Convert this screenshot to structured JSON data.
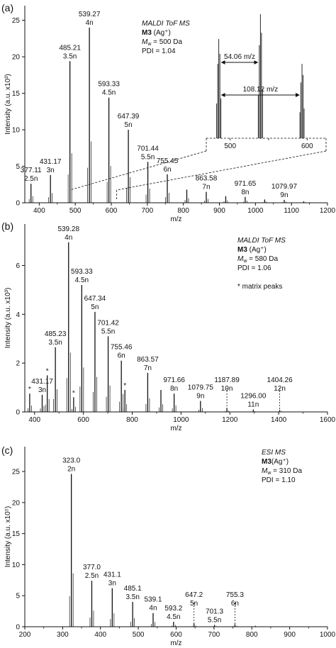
{
  "chart_data": [
    {
      "type": "bar",
      "panel_label": "(a)",
      "xlabel": "m/z",
      "ylabel": "Intensity (a.u. x10³)",
      "xlim": [
        360,
        1200
      ],
      "ylim": [
        0,
        27
      ],
      "x_ticks": [
        400,
        500,
        600,
        700,
        800,
        900,
        1000,
        1100,
        1200
      ],
      "y_ticks": [
        0,
        5,
        10,
        15,
        20,
        25
      ],
      "grid": false,
      "info": {
        "technique": "MALDI ToF MS",
        "sample": "M3",
        "ion": " (Ag⁺)",
        "mw": "M",
        "mw_sub": "w",
        "mw_value": " = 500 Da",
        "pdi": "PDI = 1.04"
      },
      "peaks": [
        {
          "x": 377.11,
          "y": 2.6,
          "label": "377.11",
          "sub": "2.5n"
        },
        {
          "x": 431.17,
          "y": 3.8,
          "label": "431.17",
          "sub": "3n"
        },
        {
          "x": 485.21,
          "y": 19.4,
          "label": "485.21",
          "sub": "3.5n"
        },
        {
          "x": 539.27,
          "y": 24.0,
          "label": "539.27",
          "sub": "4n"
        },
        {
          "x": 593.33,
          "y": 14.4,
          "label": "593.33",
          "sub": "4.5n"
        },
        {
          "x": 647.39,
          "y": 10.0,
          "label": "647.39",
          "sub": "5n"
        },
        {
          "x": 701.44,
          "y": 5.6,
          "label": "701.44",
          "sub": "5.5n"
        },
        {
          "x": 755.45,
          "y": 3.9,
          "label": "755.45",
          "sub": "6n"
        },
        {
          "x": 809.5,
          "y": 1.8,
          "label": "",
          "sub": ""
        },
        {
          "x": 863.58,
          "y": 1.5,
          "label": "863.58",
          "sub": "7n"
        },
        {
          "x": 917.6,
          "y": 0.9,
          "label": "",
          "sub": ""
        },
        {
          "x": 971.65,
          "y": 0.8,
          "label": "971.65",
          "sub": "8n"
        },
        {
          "x": 1025.7,
          "y": 0.45,
          "label": "",
          "sub": ""
        },
        {
          "x": 1079.97,
          "y": 0.4,
          "label": "1079.97",
          "sub": "9n"
        },
        {
          "x": 1134.0,
          "y": 0.2,
          "label": "",
          "sub": ""
        }
      ],
      "inset": {
        "xlim": [
          480,
          620
        ],
        "x_ticks": [
          500,
          550,
          600
        ],
        "x_tick_labels": [
          "500",
          "",
          "600"
        ],
        "peaks": [
          {
            "x": 485.21,
            "y": 0.8
          },
          {
            "x": 539.27,
            "y": 1.0
          },
          {
            "x": 593.33,
            "y": 0.6
          }
        ],
        "annotations": [
          "54.06 m/z",
          "108.12 m/z"
        ]
      }
    },
    {
      "type": "bar",
      "panel_label": "(b)",
      "xlabel": "m/z",
      "ylabel": "Intensity (a.u. x10³)",
      "xlim": [
        360,
        1600
      ],
      "ylim": [
        0,
        7.7
      ],
      "x_ticks": [
        400,
        600,
        800,
        1000,
        1200,
        1400,
        1600
      ],
      "y_ticks": [
        0,
        2,
        4,
        6
      ],
      "grid": false,
      "info": {
        "technique": "MALDI ToF MS",
        "sample": "M3",
        "ion": " (Ag⁺)",
        "mw": "M",
        "mw_sub": "w",
        "mw_value": " = 580 Da",
        "pdi": "PDI = 1.06",
        "note": "* matrix peaks"
      },
      "peaks": [
        {
          "x": 380,
          "y": 0.75,
          "label": "",
          "sub": "",
          "star": true
        },
        {
          "x": 431.17,
          "y": 0.7,
          "label": "431.17",
          "sub": "3n"
        },
        {
          "x": 452,
          "y": 1.5,
          "label": "",
          "sub": "",
          "star": true
        },
        {
          "x": 485.23,
          "y": 2.65,
          "label": "485.23",
          "sub": "3.5n"
        },
        {
          "x": 539.28,
          "y": 6.95,
          "label": "539.28",
          "sub": "4n"
        },
        {
          "x": 560,
          "y": 0.6,
          "label": "",
          "sub": "",
          "star": true
        },
        {
          "x": 593.33,
          "y": 5.2,
          "label": "593.33",
          "sub": "4.5n"
        },
        {
          "x": 647.34,
          "y": 4.1,
          "label": "647.34",
          "sub": "5n"
        },
        {
          "x": 701.42,
          "y": 3.1,
          "label": "701.42",
          "sub": "5.5n"
        },
        {
          "x": 755.46,
          "y": 2.1,
          "label": "755.46",
          "sub": "6n"
        },
        {
          "x": 770,
          "y": 0.9,
          "label": "",
          "sub": "",
          "star": true
        },
        {
          "x": 863.57,
          "y": 1.6,
          "label": "863.57",
          "sub": "7n"
        },
        {
          "x": 917.6,
          "y": 0.9,
          "label": "",
          "sub": ""
        },
        {
          "x": 971.66,
          "y": 0.75,
          "label": "971.66",
          "sub": "8n"
        },
        {
          "x": 1079.75,
          "y": 0.45,
          "label": "1079.75",
          "sub": "9n"
        },
        {
          "x": 1187.89,
          "y": 0.15,
          "label": "1187.89",
          "sub": "10n",
          "dashed": true
        },
        {
          "x": 1296.0,
          "y": 0.1,
          "label": "1296.00",
          "sub": "11n"
        },
        {
          "x": 1404.26,
          "y": 0.08,
          "label": "1404.26",
          "sub": "12n",
          "dashed": true
        }
      ]
    },
    {
      "type": "bar",
      "panel_label": "(c)",
      "xlabel": "m/z",
      "ylabel": "Intensity (a.u. x10⁵)",
      "xlim": [
        200,
        1000
      ],
      "ylim": [
        0,
        29
      ],
      "x_ticks": [
        200,
        300,
        400,
        500,
        600,
        700,
        800,
        900,
        1000
      ],
      "y_ticks": [
        0,
        5,
        10,
        15,
        20,
        25
      ],
      "grid": false,
      "info": {
        "technique": "ESI MS",
        "sample": "M3",
        "ion": "(Ag⁺)",
        "mw": "M",
        "mw_sub": "w",
        "mw_value": " = 310 Da",
        "pdi": "PDI = 1.10"
      },
      "peaks": [
        {
          "x": 323.0,
          "y": 24.6,
          "label": "323.0",
          "sub": "2n"
        },
        {
          "x": 377.0,
          "y": 7.4,
          "label": "377.0",
          "sub": "2.5n"
        },
        {
          "x": 431.1,
          "y": 6.2,
          "label": "431.1",
          "sub": "3n"
        },
        {
          "x": 485.1,
          "y": 4.0,
          "label": "485.1",
          "sub": "3.5n"
        },
        {
          "x": 539.1,
          "y": 2.2,
          "label": "539.1",
          "sub": "4n"
        },
        {
          "x": 593.2,
          "y": 0.8,
          "label": "593.2",
          "sub": "4.5n"
        },
        {
          "x": 647.2,
          "y": 0.5,
          "label": "647.2",
          "sub": "5n",
          "dashed": true
        },
        {
          "x": 701.3,
          "y": 0.3,
          "label": "701.3",
          "sub": "5.5n"
        },
        {
          "x": 755.3,
          "y": 0.4,
          "label": "755.3",
          "sub": "6n",
          "dashed": true
        },
        {
          "x": 809.4,
          "y": 0.15,
          "label": "",
          "sub": ""
        }
      ]
    }
  ]
}
